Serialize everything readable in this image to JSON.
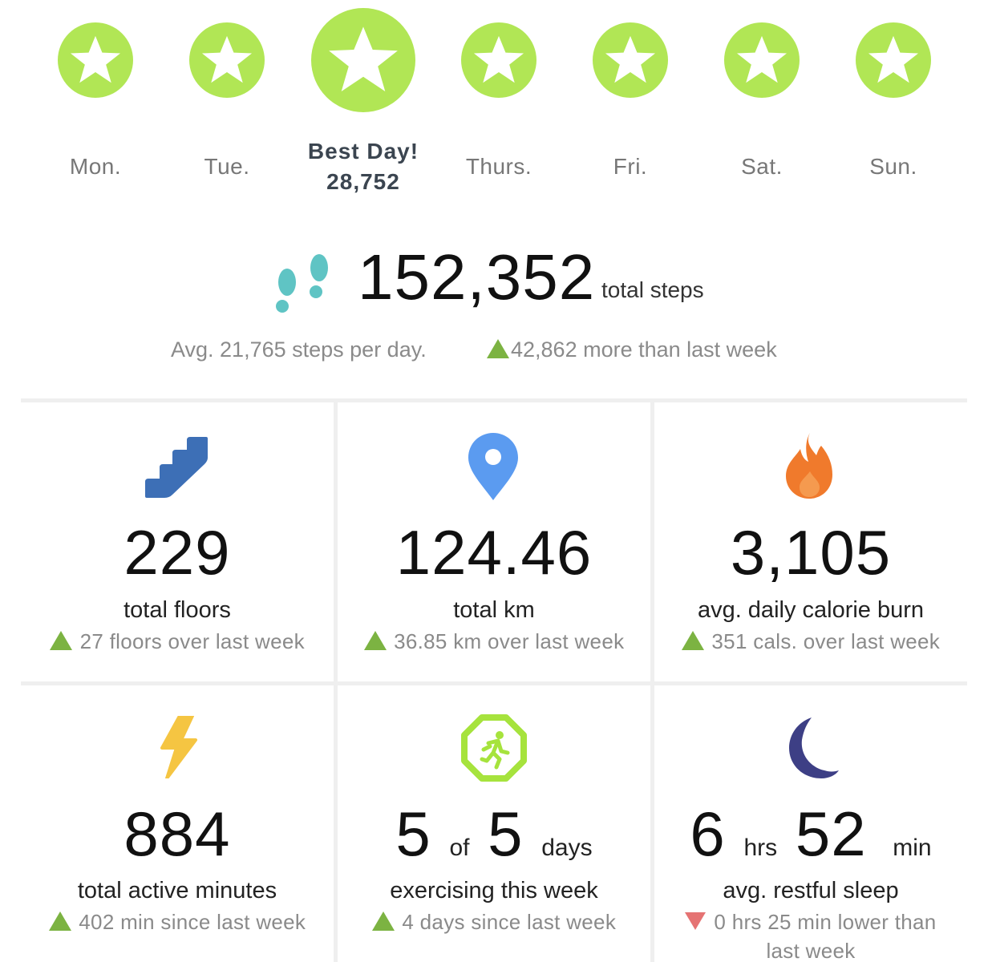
{
  "days": [
    {
      "label": "Mon."
    },
    {
      "label": "Tue."
    },
    {
      "label": "Best Day!",
      "value": "28,752"
    },
    {
      "label": "Thurs."
    },
    {
      "label": "Fri."
    },
    {
      "label": "Sat."
    },
    {
      "label": "Sun."
    }
  ],
  "steps": {
    "total": "152,352",
    "unit": "total steps",
    "avg": "Avg. 21,765 steps per day.",
    "change": "42,862 more than last week"
  },
  "tiles": {
    "floors": {
      "value": "229",
      "label": "total floors",
      "change": "27 floors over last week",
      "direction": "up"
    },
    "distance": {
      "value": "124.46",
      "label": "total km",
      "change": "36.85 km over last week",
      "direction": "up"
    },
    "calories": {
      "value": "3,105",
      "label": "avg. daily calorie burn",
      "change": "351 cals. over last week",
      "direction": "up"
    },
    "active": {
      "value": "884",
      "label": "total active minutes",
      "change": "402 min since last week",
      "direction": "up"
    },
    "exercise": {
      "value_a": "5",
      "of": "of",
      "value_b": "5",
      "unit": "days",
      "label": "exercising this week",
      "change": "4 days since last week",
      "direction": "up"
    },
    "sleep": {
      "hours": "6",
      "hours_unit": "hrs",
      "minutes": "52",
      "minutes_unit": "min",
      "label": "avg. restful sleep",
      "change": "0 hrs 25 min lower than last week",
      "direction": "down"
    }
  },
  "colors": {
    "star_green": "#b1e655",
    "up_arrow": "#7cb342",
    "down_arrow": "#e57373",
    "steps_icon": "#5fc4c4",
    "floors_icon": "#3d6fb6",
    "location_icon": "#5b9bf0",
    "flame_icon": "#f07a2c",
    "bolt_icon": "#f5c542",
    "exercise_icon": "#a6e33d",
    "moon_icon": "#3d3f85"
  }
}
